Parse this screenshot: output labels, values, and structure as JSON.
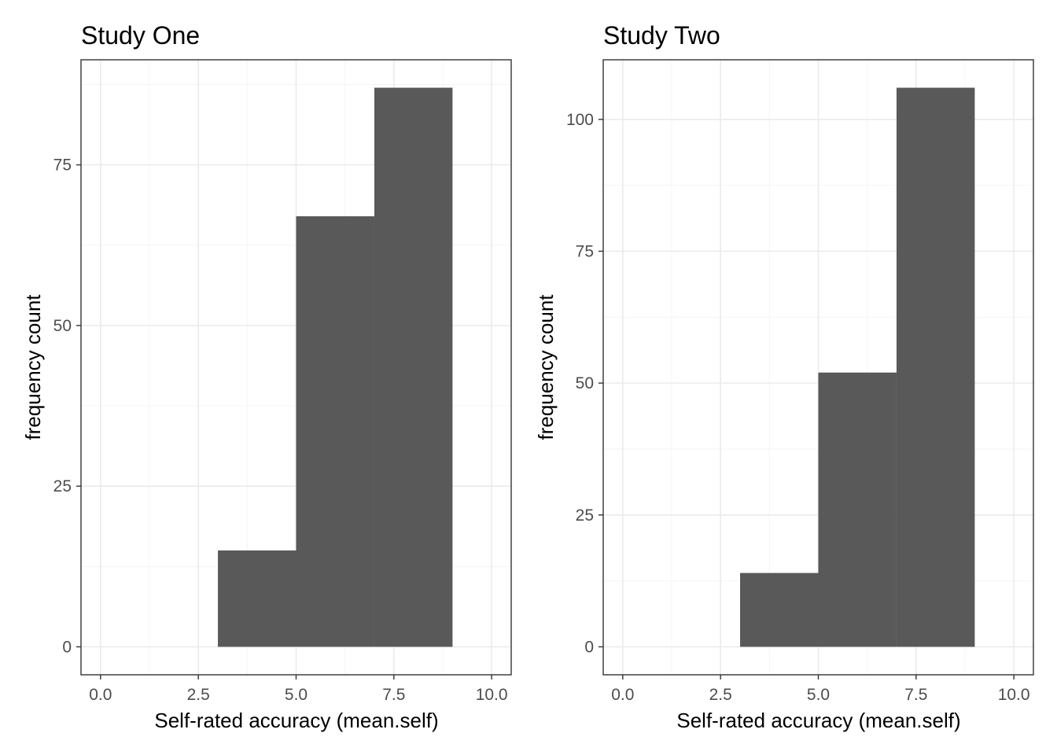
{
  "chart_data": [
    {
      "type": "bar",
      "title": "Study One",
      "xlabel": "Self-rated accuracy (mean.self)",
      "ylabel": "frequency count",
      "xlim": [
        -0.5,
        10.5
      ],
      "ylim": [
        -4.35,
        91.35
      ],
      "x_ticks": [
        0,
        2.5,
        5,
        7.5,
        10
      ],
      "x_tick_labels": [
        "0.0",
        "2.5",
        "5.0",
        "7.5",
        "10.0"
      ],
      "y_ticks": [
        0,
        25,
        50,
        75
      ],
      "y_tick_labels": [
        "0",
        "25",
        "50",
        "75"
      ],
      "bins": [
        {
          "from": 3,
          "to": 5,
          "count": 15
        },
        {
          "from": 5,
          "to": 7,
          "count": 67
        },
        {
          "from": 7,
          "to": 9,
          "count": 87
        }
      ],
      "grid": true
    },
    {
      "type": "bar",
      "title": "Study Two",
      "xlabel": "Self-rated accuracy (mean.self)",
      "ylabel": "frequency count",
      "xlim": [
        -0.5,
        10.5
      ],
      "ylim": [
        -5.3,
        111.3
      ],
      "x_ticks": [
        0,
        2.5,
        5,
        7.5,
        10
      ],
      "x_tick_labels": [
        "0.0",
        "2.5",
        "5.0",
        "7.5",
        "10.0"
      ],
      "y_ticks": [
        0,
        25,
        50,
        75,
        100
      ],
      "y_tick_labels": [
        "0",
        "25",
        "50",
        "75",
        "100"
      ],
      "bins": [
        {
          "from": 3,
          "to": 5,
          "count": 14
        },
        {
          "from": 5,
          "to": 7,
          "count": 52
        },
        {
          "from": 7,
          "to": 9,
          "count": 106
        }
      ],
      "grid": true
    }
  ]
}
